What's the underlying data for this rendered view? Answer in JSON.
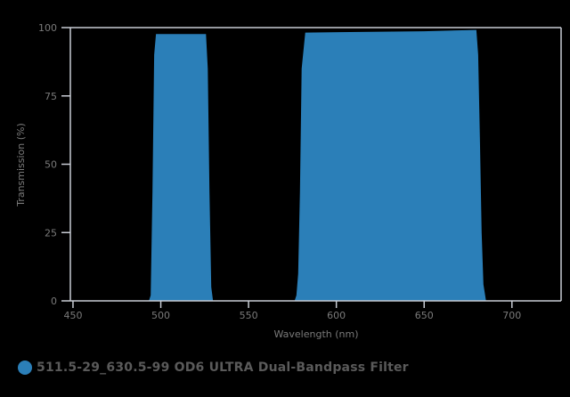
{
  "chart_data": {
    "type": "area",
    "title": "",
    "xlabel": "Wavelength (nm)",
    "ylabel": "Transmission (%)",
    "xlim": [
      448.5,
      728
    ],
    "ylim": [
      0,
      100
    ],
    "x_ticks": [
      450,
      500,
      550,
      600,
      650,
      700
    ],
    "y_ticks": [
      0,
      25,
      50,
      75,
      100
    ],
    "grid": false,
    "legend_position": "bottom-left",
    "series": [
      {
        "name": "511.5-29_630.5-99 OD6 ULTRA Dual-Bandpass Filter",
        "color": "#2b7fb8",
        "x": [
          448.5,
          493.5,
          494.5,
          495.5,
          496.5,
          497.5,
          525.5,
          526.5,
          527.5,
          528.5,
          529.5,
          576.5,
          577.5,
          578.5,
          579.5,
          580.5,
          582.5,
          620,
          650,
          679.5,
          680.5,
          681.5,
          682.5,
          683.5,
          685,
          728
        ],
        "values": [
          0,
          0,
          2,
          40,
          90,
          97.5,
          97.5,
          85,
          40,
          5,
          0,
          0,
          2,
          10,
          40,
          85,
          98,
          98.3,
          98.5,
          99,
          90,
          60,
          25,
          6,
          0,
          0
        ]
      }
    ]
  },
  "legend": {
    "label": "511.5-29_630.5-99 OD6 ULTRA Dual-Bandpass Filter",
    "color": "#2b7fb8"
  }
}
